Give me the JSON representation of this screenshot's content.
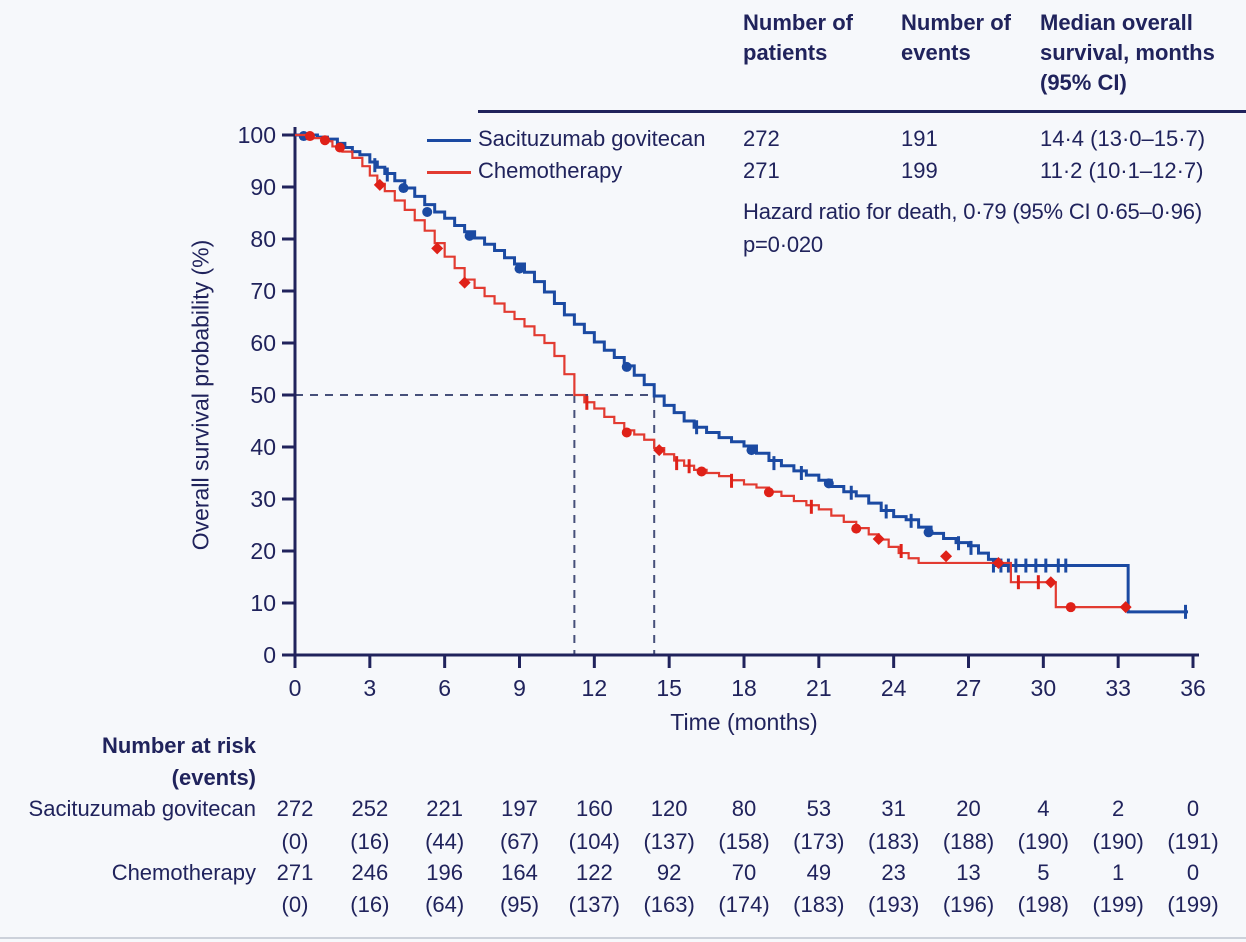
{
  "colors": {
    "background": "#f6f8fb",
    "ink": "#20235c",
    "dashed_reference": "#46507a",
    "sacituzumab_blue": "#1b4aa2",
    "chemotherapy_red": "#e23b31",
    "chemotherapy_marker_red": "#df2118"
  },
  "summary": {
    "columns": [
      "Number of patients",
      "Number of events",
      "Median overall survival, months (95% CI)"
    ]
  },
  "stats": {
    "hazard_ratio": "Hazard ratio for death, 0·79 (95% CI 0·65–0·96)",
    "p_value": "p=0·020"
  },
  "chart_data": {
    "type": "line",
    "subtype": "kaplan-meier-step",
    "xlabel": "Time (months)",
    "ylabel": "Overall survival probability (%)",
    "xlim": [
      0,
      36
    ],
    "ylim": [
      0,
      100
    ],
    "x_ticks": [
      0,
      3,
      6,
      9,
      12,
      15,
      18,
      21,
      24,
      27,
      30,
      33,
      36
    ],
    "y_ticks": [
      0,
      10,
      20,
      30,
      40,
      50,
      60,
      70,
      80,
      90,
      100
    ],
    "grid": false,
    "reference_line_pct": 50,
    "legend_position": "top-left-inside",
    "series": [
      {
        "name": "Sacituzumab govitecan",
        "color": "#1b4aa2",
        "marker_color": "#1b4aa2",
        "n_patients": "272",
        "n_events": "191",
        "median_text": "14·4 (13·0–15·7)",
        "median_months": 14.4,
        "points": [
          [
            0,
            100
          ],
          [
            0.9,
            99.6
          ],
          [
            1.3,
            99.2
          ],
          [
            1.7,
            98.4
          ],
          [
            2.0,
            97.6
          ],
          [
            2.3,
            96.8
          ],
          [
            2.6,
            96.2
          ],
          [
            3.0,
            94.8
          ],
          [
            3.3,
            93.8
          ],
          [
            3.6,
            92.6
          ],
          [
            4.0,
            91.2
          ],
          [
            4.4,
            89.8
          ],
          [
            4.8,
            88.2
          ],
          [
            5.2,
            86.6
          ],
          [
            5.6,
            85.2
          ],
          [
            6.0,
            84.0
          ],
          [
            6.4,
            82.6
          ],
          [
            6.8,
            81.4
          ],
          [
            7.2,
            80.2
          ],
          [
            7.6,
            79.0
          ],
          [
            8.0,
            77.8
          ],
          [
            8.4,
            76.4
          ],
          [
            8.8,
            75.2
          ],
          [
            9.2,
            73.6
          ],
          [
            9.6,
            71.8
          ],
          [
            10.0,
            69.8
          ],
          [
            10.4,
            67.6
          ],
          [
            10.8,
            65.4
          ],
          [
            11.2,
            63.6
          ],
          [
            11.6,
            62.0
          ],
          [
            12.0,
            60.2
          ],
          [
            12.4,
            58.6
          ],
          [
            12.8,
            57.2
          ],
          [
            13.2,
            55.6
          ],
          [
            13.6,
            53.8
          ],
          [
            14.0,
            52.0
          ],
          [
            14.4,
            49.8
          ],
          [
            14.8,
            48.0
          ],
          [
            15.2,
            46.6
          ],
          [
            15.6,
            45.0
          ],
          [
            16.0,
            43.8
          ],
          [
            16.5,
            42.8
          ],
          [
            17.0,
            41.8
          ],
          [
            17.5,
            41.0
          ],
          [
            18.0,
            40.2
          ],
          [
            18.5,
            38.8
          ],
          [
            19.0,
            37.4
          ],
          [
            19.5,
            36.4
          ],
          [
            20.0,
            35.4
          ],
          [
            20.5,
            34.6
          ],
          [
            21.0,
            33.6
          ],
          [
            21.5,
            32.4
          ],
          [
            22.0,
            31.4
          ],
          [
            22.5,
            30.6
          ],
          [
            23.0,
            29.2
          ],
          [
            23.5,
            27.8
          ],
          [
            24.0,
            26.6
          ],
          [
            24.5,
            26.0
          ],
          [
            25.0,
            24.6
          ],
          [
            25.5,
            23.4
          ],
          [
            26.0,
            22.4
          ],
          [
            26.5,
            21.6
          ],
          [
            27.0,
            21.0
          ],
          [
            27.4,
            19.6
          ],
          [
            27.8,
            18.4
          ],
          [
            28.1,
            17.2
          ],
          [
            33.4,
            17.2
          ],
          [
            33.4,
            8.3
          ],
          [
            35.8,
            8.3
          ]
        ],
        "markers": {
          "dots": [
            [
              0.35,
              99.8
            ],
            [
              4.35,
              89.8
            ],
            [
              5.3,
              85.2
            ],
            [
              7.0,
              80.6
            ],
            [
              9.0,
              74.3
            ],
            [
              13.3,
              55.4
            ],
            [
              18.3,
              39.4
            ],
            [
              21.4,
              33.0
            ],
            [
              25.4,
              23.6
            ]
          ],
          "diamonds": [],
          "plus": [
            [
              3.2,
              94.2
            ],
            [
              3.7,
              92.4
            ],
            [
              16.1,
              43.8
            ],
            [
              19.2,
              36.9
            ],
            [
              20.3,
              35.0
            ],
            [
              22.3,
              31.2
            ],
            [
              23.7,
              27.6
            ],
            [
              24.7,
              25.8
            ],
            [
              26.6,
              21.5
            ],
            [
              27.1,
              20.6
            ],
            [
              28.0,
              17.2
            ],
            [
              28.3,
              17.2
            ],
            [
              28.6,
              17.2
            ],
            [
              28.9,
              17.2
            ],
            [
              29.3,
              17.2
            ],
            [
              29.7,
              17.2
            ],
            [
              30.1,
              17.2
            ],
            [
              30.6,
              17.2
            ],
            [
              30.9,
              17.2
            ],
            [
              35.7,
              8.3
            ]
          ]
        }
      },
      {
        "name": "Chemotherapy",
        "color": "#e23b31",
        "marker_color": "#df2118",
        "n_patients": "271",
        "n_events": "199",
        "median_text": "11·2 (10·1–12·7)",
        "median_months": 11.2,
        "points": [
          [
            0,
            100
          ],
          [
            0.7,
            99.4
          ],
          [
            1.1,
            98.8
          ],
          [
            1.5,
            97.8
          ],
          [
            1.9,
            96.8
          ],
          [
            2.3,
            95.6
          ],
          [
            2.7,
            94.0
          ],
          [
            3.0,
            92.2
          ],
          [
            3.3,
            90.6
          ],
          [
            3.6,
            89.2
          ],
          [
            4.0,
            87.4
          ],
          [
            4.4,
            85.6
          ],
          [
            4.8,
            83.6
          ],
          [
            5.2,
            81.6
          ],
          [
            5.6,
            79.2
          ],
          [
            6.0,
            76.6
          ],
          [
            6.4,
            74.4
          ],
          [
            6.8,
            72.2
          ],
          [
            7.2,
            70.6
          ],
          [
            7.6,
            69.0
          ],
          [
            8.0,
            67.6
          ],
          [
            8.4,
            66.0
          ],
          [
            8.8,
            64.6
          ],
          [
            9.2,
            63.2
          ],
          [
            9.6,
            61.5
          ],
          [
            10.0,
            60.0
          ],
          [
            10.4,
            57.5
          ],
          [
            10.8,
            54.0
          ],
          [
            11.2,
            50.0
          ],
          [
            11.6,
            48.6
          ],
          [
            12.0,
            47.4
          ],
          [
            12.4,
            45.8
          ],
          [
            12.8,
            44.6
          ],
          [
            13.2,
            43.2
          ],
          [
            13.6,
            42.4
          ],
          [
            14.0,
            41.4
          ],
          [
            14.4,
            39.8
          ],
          [
            14.8,
            38.6
          ],
          [
            15.2,
            37.4
          ],
          [
            15.6,
            36.4
          ],
          [
            16.0,
            35.6
          ],
          [
            16.5,
            35.0
          ],
          [
            17.0,
            34.4
          ],
          [
            17.5,
            33.6
          ],
          [
            18.0,
            32.8
          ],
          [
            18.5,
            32.2
          ],
          [
            19.0,
            31.4
          ],
          [
            19.5,
            30.6
          ],
          [
            20.0,
            29.6
          ],
          [
            20.5,
            28.8
          ],
          [
            21.0,
            28.0
          ],
          [
            21.5,
            26.8
          ],
          [
            22.0,
            25.6
          ],
          [
            22.5,
            24.4
          ],
          [
            23.0,
            23.2
          ],
          [
            23.4,
            22.2
          ],
          [
            23.8,
            20.8
          ],
          [
            24.2,
            19.6
          ],
          [
            24.6,
            18.6
          ],
          [
            25.0,
            17.7
          ],
          [
            28.7,
            17.7
          ],
          [
            28.7,
            14.0
          ],
          [
            30.5,
            14.0
          ],
          [
            30.5,
            9.2
          ],
          [
            33.3,
            9.2
          ]
        ],
        "markers": {
          "dots": [
            [
              0.6,
              99.8
            ],
            [
              1.2,
              99.0
            ],
            [
              1.8,
              97.6
            ],
            [
              13.3,
              42.8
            ],
            [
              16.3,
              35.3
            ],
            [
              19.0,
              31.3
            ],
            [
              22.5,
              24.3
            ],
            [
              31.1,
              9.2
            ]
          ],
          "diamonds": [
            [
              3.4,
              90.4
            ],
            [
              5.7,
              78.2
            ],
            [
              6.8,
              71.6
            ],
            [
              14.6,
              39.4
            ],
            [
              23.4,
              22.3
            ],
            [
              26.1,
              19.0
            ],
            [
              28.2,
              17.7
            ],
            [
              30.3,
              14.0
            ],
            [
              33.3,
              9.2
            ]
          ],
          "plus": [
            [
              11.7,
              48.5
            ],
            [
              15.3,
              36.9
            ],
            [
              15.8,
              36.3
            ],
            [
              17.5,
              33.5
            ],
            [
              20.7,
              28.5
            ],
            [
              24.3,
              20.0
            ],
            [
              29.0,
              14.0
            ],
            [
              29.8,
              14.0
            ]
          ]
        }
      }
    ]
  },
  "risk_table": {
    "title_line1": "Number at risk",
    "title_line2": "(events)",
    "times": [
      0,
      3,
      6,
      9,
      12,
      15,
      18,
      21,
      24,
      27,
      30,
      33,
      36
    ],
    "rows": [
      {
        "label": "Sacituzumab govitecan",
        "at_risk": [
          "272",
          "252",
          "221",
          "197",
          "160",
          "120",
          "80",
          "53",
          "31",
          "20",
          "4",
          "2",
          "0"
        ],
        "events": [
          "(0)",
          "(16)",
          "(44)",
          "(67)",
          "(104)",
          "(137)",
          "(158)",
          "(173)",
          "(183)",
          "(188)",
          "(190)",
          "(190)",
          "(191)"
        ]
      },
      {
        "label": "Chemotherapy",
        "at_risk": [
          "271",
          "246",
          "196",
          "164",
          "122",
          "92",
          "70",
          "49",
          "23",
          "13",
          "5",
          "1",
          "0"
        ],
        "events": [
          "(0)",
          "(16)",
          "(64)",
          "(95)",
          "(137)",
          "(163)",
          "(174)",
          "(183)",
          "(193)",
          "(196)",
          "(198)",
          "(199)",
          "(199)"
        ]
      }
    ]
  }
}
